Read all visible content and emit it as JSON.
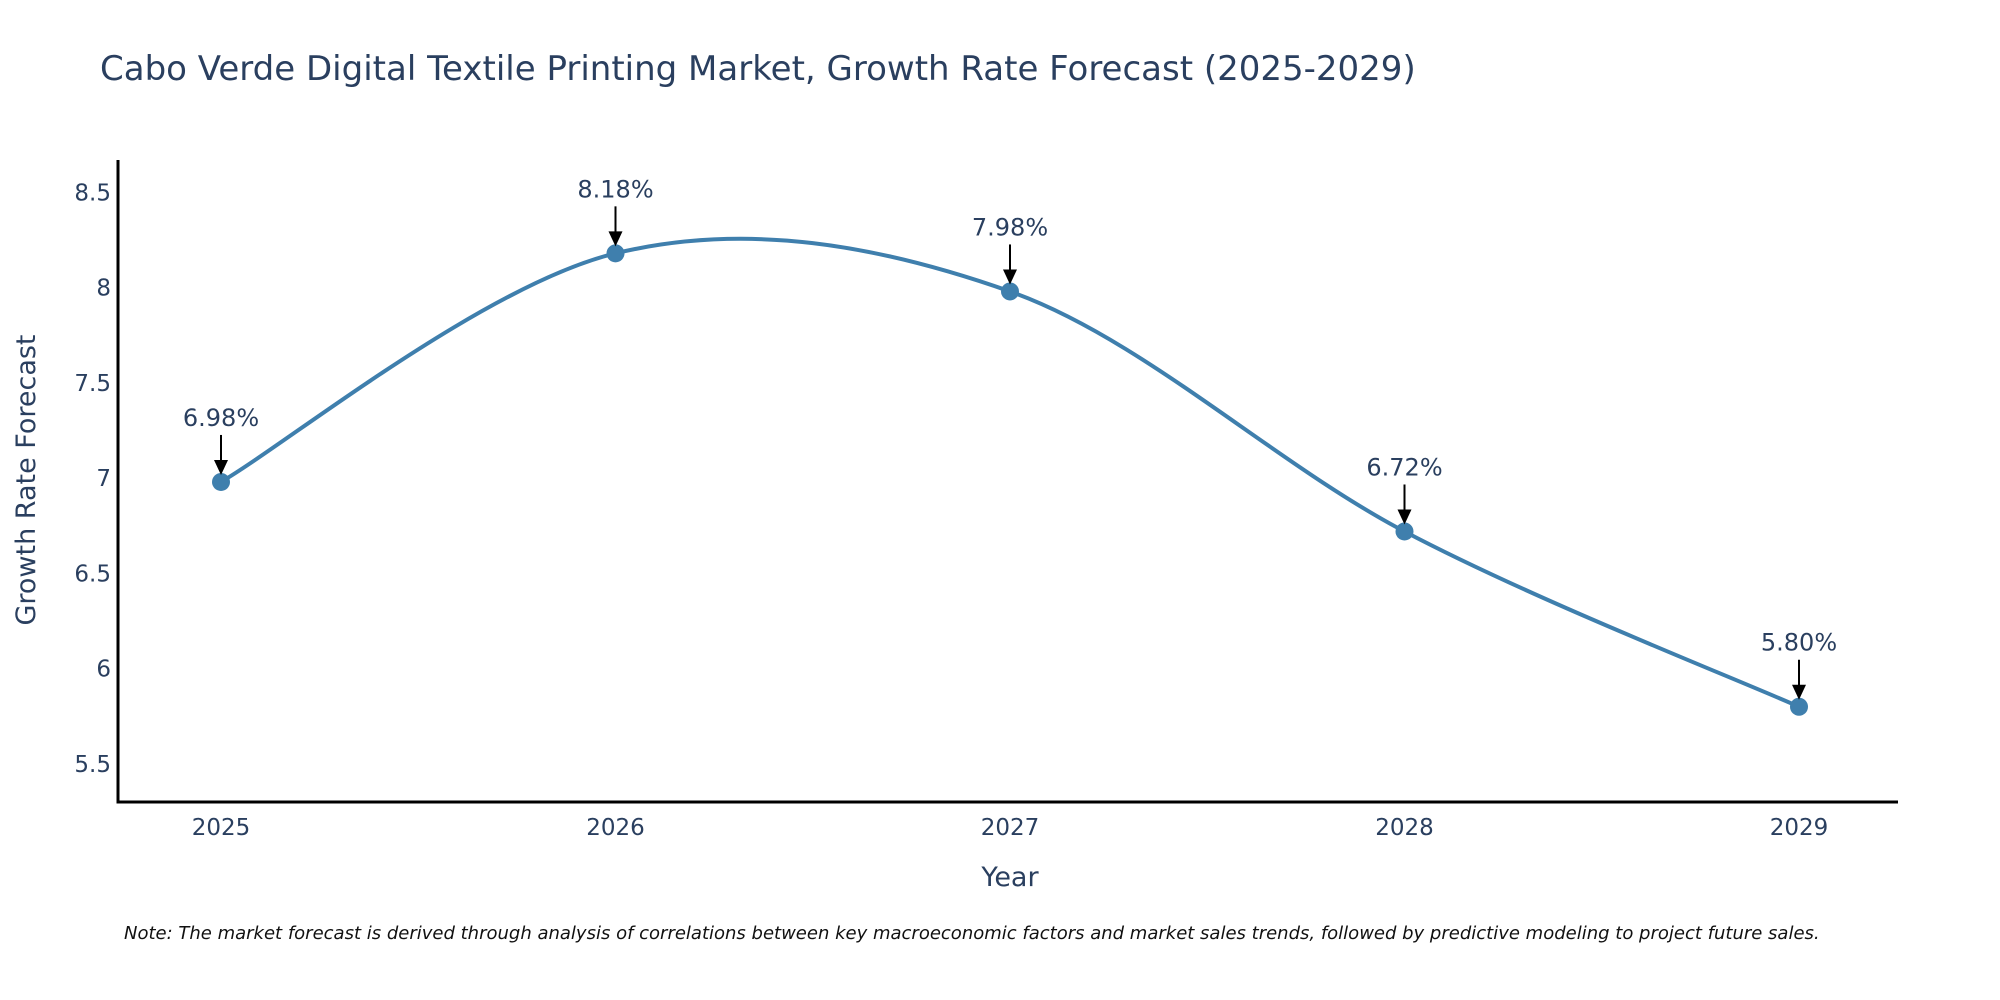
{
  "chart_data": {
    "type": "line",
    "title": "Cabo Verde Digital Textile Printing Market, Growth Rate Forecast (2025-2029)",
    "xlabel": "Year",
    "ylabel": "Growth Rate Forecast",
    "categories": [
      "2025",
      "2026",
      "2027",
      "2028",
      "2029"
    ],
    "series": [
      {
        "name": "Growth Rate Forecast",
        "values": [
          6.98,
          8.18,
          7.98,
          6.72,
          5.8
        ],
        "labels": [
          "6.98%",
          "8.18%",
          "7.98%",
          "6.72%",
          "5.80%"
        ]
      }
    ],
    "ylim": [
      5.3,
      8.67
    ],
    "yticks": [
      5.5,
      6,
      6.5,
      7,
      7.5,
      8,
      8.5
    ],
    "ytick_labels": [
      "5.5",
      "6",
      "6.5",
      "7",
      "7.5",
      "8",
      "8.5"
    ],
    "grid": false,
    "line_shape": "spline",
    "colors": {
      "line": "#3f7fad",
      "marker": "#3f7fad",
      "axis": "#000000",
      "arrow": "#000000",
      "text": "#2a3f5f"
    },
    "footnote": "Note: The market forecast is derived through analysis of correlations between key macroeconomic factors and market sales trends, followed by predictive modeling to project future sales."
  }
}
